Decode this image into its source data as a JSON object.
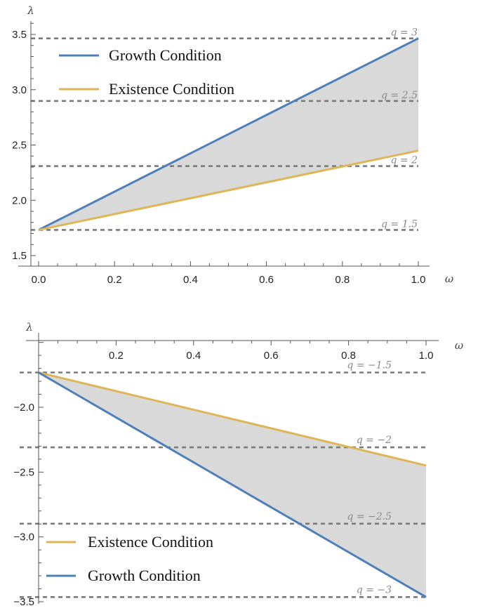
{
  "chart_data": [
    {
      "type": "line",
      "xlabel": "ω",
      "ylabel": "λ",
      "xlim": [
        0,
        1.0
      ],
      "ylim": [
        1.3,
        3.6
      ],
      "x_ticks": [
        {
          "v": 0.0,
          "label": "0.0"
        },
        {
          "v": 0.2,
          "label": "0.2"
        },
        {
          "v": 0.4,
          "label": "0.4"
        },
        {
          "v": 0.6,
          "label": "0.6"
        },
        {
          "v": 0.8,
          "label": "0.8"
        },
        {
          "v": 1.0,
          "label": "1.0"
        }
      ],
      "y_ticks": [
        {
          "v": 1.5,
          "label": "1.5"
        },
        {
          "v": 2.0,
          "label": "2.0"
        },
        {
          "v": 2.5,
          "label": "2.5"
        },
        {
          "v": 3.0,
          "label": "3.0"
        },
        {
          "v": 3.5,
          "label": "3.5"
        }
      ],
      "series": [
        {
          "name": "Growth Condition",
          "color": "#4f7fb8",
          "x": [
            0,
            1
          ],
          "y": [
            1.732,
            3.464
          ]
        },
        {
          "name": "Existence Condition",
          "color": "#dfb657",
          "x": [
            0,
            1
          ],
          "y": [
            1.732,
            2.449
          ]
        }
      ],
      "hlines": [
        {
          "y": 3.464,
          "label": "q = 3"
        },
        {
          "y": 2.898,
          "label": "q = 2.5"
        },
        {
          "y": 2.309,
          "label": "q = 2"
        },
        {
          "y": 1.732,
          "label": "q = 1.5"
        }
      ],
      "shaded_region": "between series",
      "legend_position": "top-left",
      "grid": false
    },
    {
      "type": "line",
      "xlabel": "ω",
      "ylabel": "λ",
      "xlim": [
        0,
        1.0
      ],
      "ylim": [
        -3.5,
        -1.5
      ],
      "x_ticks": [
        {
          "v": 0.2,
          "label": "0.2"
        },
        {
          "v": 0.4,
          "label": "0.4"
        },
        {
          "v": 0.6,
          "label": "0.6"
        },
        {
          "v": 0.8,
          "label": "0.8"
        },
        {
          "v": 1.0,
          "label": "1.0"
        }
      ],
      "y_ticks": [
        {
          "v": -2.0,
          "label": "−2.0"
        },
        {
          "v": -2.5,
          "label": "−2.5"
        },
        {
          "v": -3.0,
          "label": "−3.0"
        },
        {
          "v": -3.5,
          "label": "−3.5"
        }
      ],
      "series": [
        {
          "name": "Existence Condition",
          "color": "#dfb657",
          "x": [
            0,
            1
          ],
          "y": [
            -1.732,
            -2.449
          ]
        },
        {
          "name": "Growth Condition",
          "color": "#4f7fb8",
          "x": [
            0,
            1
          ],
          "y": [
            -1.732,
            -3.464
          ]
        }
      ],
      "hlines": [
        {
          "y": -1.732,
          "label": "q = −1.5"
        },
        {
          "y": -2.309,
          "label": "q = −2"
        },
        {
          "y": -2.898,
          "label": "q = −2.5"
        },
        {
          "y": -3.464,
          "label": "q = −3"
        }
      ],
      "shaded_region": "between series",
      "legend_position": "bottom-left",
      "grid": false
    }
  ]
}
